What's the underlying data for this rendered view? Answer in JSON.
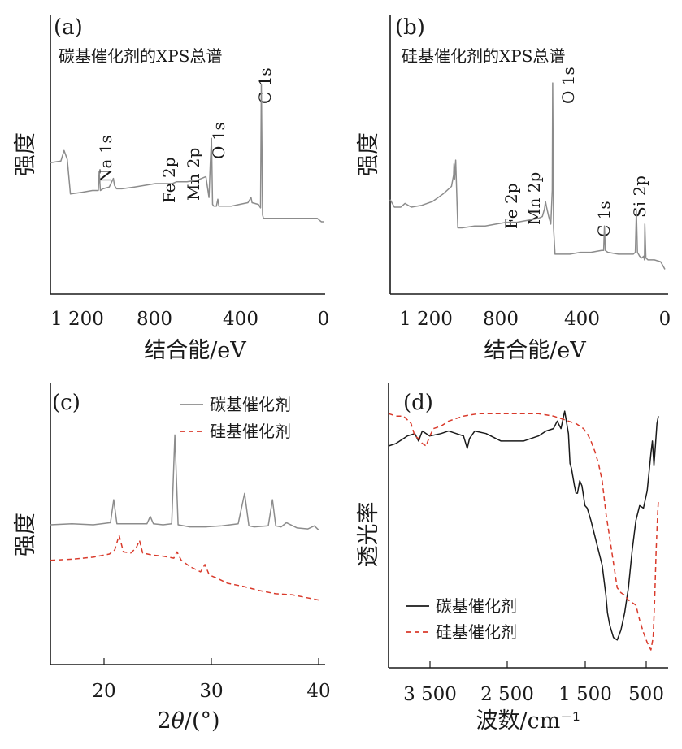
{
  "figure": {
    "y_label_intensity": "强度",
    "y_label_transmittance": "透光率"
  },
  "chart_data": [
    {
      "panel": "a",
      "type": "line",
      "label": "(a)",
      "title": "碳基催化剂的XPS总谱",
      "xlabel": "结合能/eV",
      "ylabel": "强度",
      "xlim": [
        1300,
        0
      ],
      "xticks": [
        1200,
        800,
        400,
        0
      ],
      "xtick_labels": [
        "1 200",
        "800",
        "400",
        "0"
      ],
      "series": [
        {
          "color": "#8c8c8c",
          "x": [
            1300,
            1250,
            1235,
            1220,
            1205,
            1150,
            1100,
            1072,
            1068,
            1062,
            1050,
            1020,
            1000,
            995,
            985,
            960,
            900,
            850,
            800,
            760,
            720,
            700,
            650,
            600,
            560,
            545,
            538,
            533,
            528,
            522,
            510,
            503,
            498,
            480,
            440,
            400,
            360,
            345,
            340,
            310,
            300,
            296,
            290,
            286,
            280,
            260,
            230,
            200,
            150,
            100,
            60,
            30,
            20,
            10,
            0
          ],
          "y": [
            50,
            51,
            57,
            52,
            32,
            33,
            34,
            34,
            45,
            34,
            35,
            36,
            41,
            37,
            35,
            35,
            36,
            37,
            38,
            38,
            38,
            39,
            39,
            40,
            42,
            30,
            52,
            64,
            26,
            25,
            25,
            29,
            25,
            25,
            25,
            26,
            27,
            30,
            27,
            26,
            24,
            95,
            20,
            18,
            18,
            18,
            18,
            18,
            18,
            18,
            18,
            18,
            17,
            16,
            16
          ]
        }
      ],
      "peaks": [
        {
          "label": "Na 1s",
          "x": 1070
        },
        {
          "label": "Fe 2p",
          "x": 710
        },
        {
          "label": "Mn 2p",
          "x": 640
        },
        {
          "label": "O 1s",
          "x": 531
        },
        {
          "label": "C 1s",
          "x": 284
        }
      ]
    },
    {
      "panel": "b",
      "type": "line",
      "label": "(b)",
      "title": "硅基催化剂的XPS总谱",
      "xlabel": "结合能/eV",
      "ylabel": "强度",
      "xlim": [
        1300,
        0
      ],
      "xticks": [
        1200,
        800,
        400,
        0
      ],
      "xtick_labels": [
        "1 200",
        "800",
        "400",
        "0"
      ],
      "series": [
        {
          "color": "#8c8c8c",
          "x": [
            1300,
            1280,
            1250,
            1230,
            1200,
            1150,
            1100,
            1050,
            1010,
            1000,
            998,
            995,
            990,
            980,
            960,
            900,
            850,
            800,
            750,
            700,
            650,
            600,
            580,
            570,
            565,
            560,
            550,
            540,
            533,
            531,
            527,
            520,
            500,
            450,
            400,
            350,
            300,
            290,
            286,
            282,
            270,
            220,
            180,
            150,
            140,
            135,
            130,
            120,
            110,
            100,
            97,
            95,
            90,
            80,
            50,
            20,
            10,
            0
          ],
          "y": [
            35,
            31,
            31,
            33,
            31,
            32,
            34,
            38,
            42,
            48,
            54,
            46,
            56,
            20,
            20,
            21,
            21,
            22,
            23,
            23,
            24,
            25,
            26,
            30,
            34,
            31,
            26,
            22,
            40,
            97,
            20,
            6,
            6,
            6,
            7,
            7,
            8,
            8,
            21,
            8,
            7,
            6,
            6,
            6,
            7,
            29,
            7,
            5,
            4,
            5,
            3,
            22,
            4,
            3,
            3,
            2,
            0,
            -2
          ]
        }
      ],
      "peaks": [
        {
          "label": "Fe 2p",
          "x": 712
        },
        {
          "label": "Mn 2p",
          "x": 642
        },
        {
          "label": "O 1s",
          "x": 531
        },
        {
          "label": "C 1s",
          "x": 285
        },
        {
          "label": "Si 2p",
          "x": 103
        }
      ]
    },
    {
      "panel": "c",
      "type": "line",
      "label": "(c)",
      "xlabel": "2θ/(°)",
      "ylabel": "强度",
      "xlim": [
        15,
        40
      ],
      "xticks": [
        20,
        30,
        40
      ],
      "xtick_labels": [
        "20",
        "30",
        "40"
      ],
      "series": [
        {
          "name": "碳基催化剂",
          "color": "#8c8c8c",
          "dash": "",
          "x": [
            15.0,
            17.0,
            19.0,
            20.6,
            20.9,
            21.2,
            22.0,
            24.0,
            24.3,
            24.6,
            25.5,
            26.3,
            26.6,
            26.9,
            28.0,
            29.5,
            31.0,
            32.5,
            33.1,
            33.5,
            34.0,
            35.3,
            35.7,
            36.0,
            36.5,
            37.0,
            38.0,
            39.0,
            39.6,
            40.0
          ],
          "y": [
            102,
            103,
            102,
            104,
            126,
            103,
            103,
            103,
            110,
            103,
            102,
            103,
            188,
            102,
            100,
            100,
            101,
            103,
            132,
            101,
            100,
            101,
            126,
            101,
            100,
            104,
            99,
            98,
            101,
            97
          ]
        },
        {
          "name": "硅基催化剂",
          "color": "#d93a2b",
          "dash": "6 4",
          "x": [
            15.0,
            17.0,
            19.0,
            20.5,
            21.0,
            21.4,
            21.8,
            22.5,
            23.0,
            23.3,
            23.6,
            24.5,
            25.5,
            26.5,
            26.8,
            27.2,
            28.0,
            29.0,
            29.4,
            29.8,
            30.5,
            31.5,
            33.0,
            34.5,
            36.0,
            37.5,
            38.5,
            39.5,
            40.0
          ],
          "y": [
            68,
            69,
            71,
            74,
            78,
            92,
            76,
            75,
            80,
            87,
            75,
            73,
            72,
            70,
            76,
            68,
            62,
            57,
            64,
            54,
            51,
            46,
            43,
            39,
            36,
            35,
            33,
            31,
            30
          ]
        }
      ],
      "legend": "top-right"
    },
    {
      "panel": "d",
      "type": "line",
      "label": "(d)",
      "xlabel": "波数/cm⁻¹",
      "ylabel": "透光率",
      "xlim": [
        4000,
        400
      ],
      "xticks": [
        3500,
        2500,
        1500,
        500
      ],
      "xtick_labels": [
        "3 500",
        "2 500",
        "1 500",
        "500"
      ],
      "series": [
        {
          "name": "碳基催化剂",
          "color": "#1a1a1a",
          "dash": "",
          "x": [
            4000,
            3900,
            3750,
            3650,
            3600,
            3550,
            3450,
            3300,
            3200,
            3000,
            2950,
            2920,
            2850,
            2700,
            2500,
            2200,
            2000,
            1900,
            1800,
            1750,
            1700,
            1650,
            1600,
            1580,
            1560,
            1520,
            1500,
            1480,
            1450,
            1420,
            1400,
            1380,
            1350,
            1300,
            1250,
            1200,
            1150,
            1100,
            1080,
            1050,
            1000,
            950,
            900,
            850,
            800,
            750,
            700,
            650,
            600,
            550,
            500,
            480,
            460,
            440,
            420,
            400
          ],
          "y": [
            82,
            83,
            86,
            87,
            84,
            88,
            86,
            87,
            88,
            86,
            81,
            85,
            88,
            87,
            84,
            84,
            86,
            88,
            89,
            92,
            89,
            96,
            87,
            75,
            73,
            66,
            63,
            63,
            68,
            66,
            62,
            58,
            57,
            52,
            46,
            40,
            34,
            22,
            15,
            10,
            5,
            4,
            8,
            15,
            25,
            40,
            52,
            58,
            57,
            64,
            79,
            84,
            74,
            82,
            91,
            94
          ]
        },
        {
          "name": "硅基催化剂",
          "color": "#d93a2b",
          "dash": "6 4",
          "x": [
            4000,
            3900,
            3800,
            3700,
            3650,
            3600,
            3550,
            3500,
            3450,
            3400,
            3300,
            3200,
            3000,
            2800,
            2500,
            2200,
            2000,
            1800,
            1700,
            1600,
            1500,
            1400,
            1350,
            1300,
            1250,
            1200,
            1150,
            1100,
            1050,
            1000,
            950,
            900,
            850,
            800,
            750,
            700,
            650,
            600,
            550,
            500,
            470,
            450,
            430,
            410,
            400
          ],
          "y": [
            95,
            94,
            94,
            91,
            86,
            85,
            83,
            82,
            86,
            89,
            90,
            92,
            94,
            95,
            95,
            95,
            95,
            94,
            93,
            92,
            91,
            89,
            87,
            84,
            80,
            75,
            68,
            55,
            45,
            35,
            25,
            23,
            22,
            20,
            19,
            18,
            12,
            7,
            3,
            0,
            5,
            20,
            40,
            55,
            60
          ]
        }
      ],
      "legend": "bottom-left"
    }
  ]
}
